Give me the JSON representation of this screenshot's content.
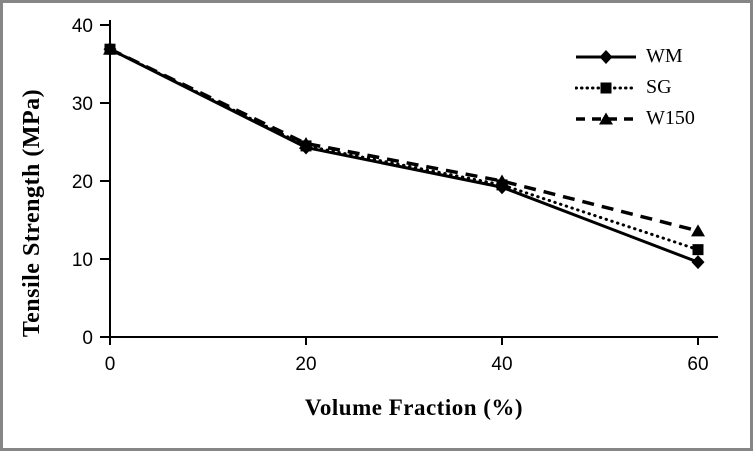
{
  "frame": {
    "border_color": "#868686",
    "background_color": "#ffffff",
    "line_color": "#000000"
  },
  "chart_data": {
    "type": "line",
    "xlabel": "Volume Fraction (%)",
    "ylabel": "Tensile Strength (MPa)",
    "x": [
      0,
      20,
      40,
      60
    ],
    "x_ticks": [
      "0",
      "20",
      "40",
      "60"
    ],
    "y_ticks": [
      "0",
      "10",
      "20",
      "30",
      "40"
    ],
    "xlim": [
      0,
      60
    ],
    "ylim": [
      0,
      40
    ],
    "grid": false,
    "legend_position": "top-right",
    "line_color": "#000000",
    "series": [
      {
        "name": "WM",
        "marker": "diamond",
        "line_style": "solid",
        "values": [
          36.9,
          24.3,
          19.2,
          9.6
        ]
      },
      {
        "name": "SG",
        "marker": "square",
        "line_style": "dotted",
        "values": [
          36.9,
          24.5,
          19.5,
          11.2
        ]
      },
      {
        "name": "W150",
        "marker": "triangle",
        "line_style": "dashed",
        "values": [
          36.9,
          24.8,
          20.0,
          13.6
        ]
      }
    ]
  }
}
